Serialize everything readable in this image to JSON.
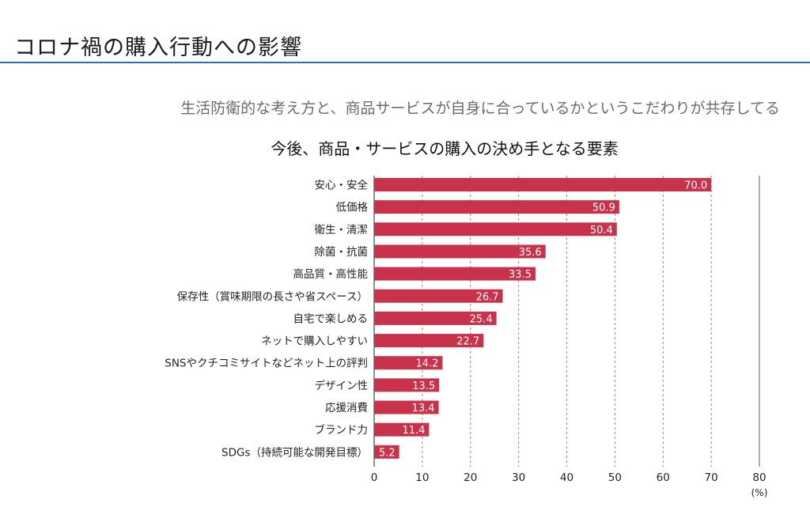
{
  "header": {
    "title": "コロナ禍の購入行動への影響",
    "accent_color": "#2f6eb5"
  },
  "subtitle": "生活防衛的な考え方と、商品サービスが自身に合っているかというこだわりが共存してる",
  "chart_data": {
    "type": "bar",
    "orientation": "horizontal",
    "title": "今後、商品・サービスの購入の決め手となる要素",
    "categories": [
      "安心・安全",
      "低価格",
      "衛生・清潔",
      "除菌・抗菌",
      "高品質・高性能",
      "保存性（賞味期限の長さや省スペース）",
      "自宅で楽しめる",
      "ネットで購入しやすい",
      "SNSやクチコミサイトなどネット上の評判",
      "デザイン性",
      "応援消費",
      "ブランド力",
      "SDGs（持続可能な開発目標）"
    ],
    "values": [
      70.0,
      50.9,
      50.4,
      35.6,
      33.5,
      26.7,
      25.4,
      22.7,
      14.2,
      13.5,
      13.4,
      11.4,
      5.2
    ],
    "value_labels": [
      "70.0",
      "50.9",
      "50.4",
      "35.6",
      "33.5",
      "26.7",
      "25.4",
      "22.7",
      "14.2",
      "13.5",
      "13.4",
      "11.4",
      "5.2"
    ],
    "xlim": [
      0,
      80
    ],
    "xticks": [
      "0",
      "10",
      "20",
      "30",
      "40",
      "50",
      "60",
      "70",
      "80"
    ],
    "unit": "(%)",
    "grid": "dotted vertical",
    "bar_color": "#c8324b"
  }
}
